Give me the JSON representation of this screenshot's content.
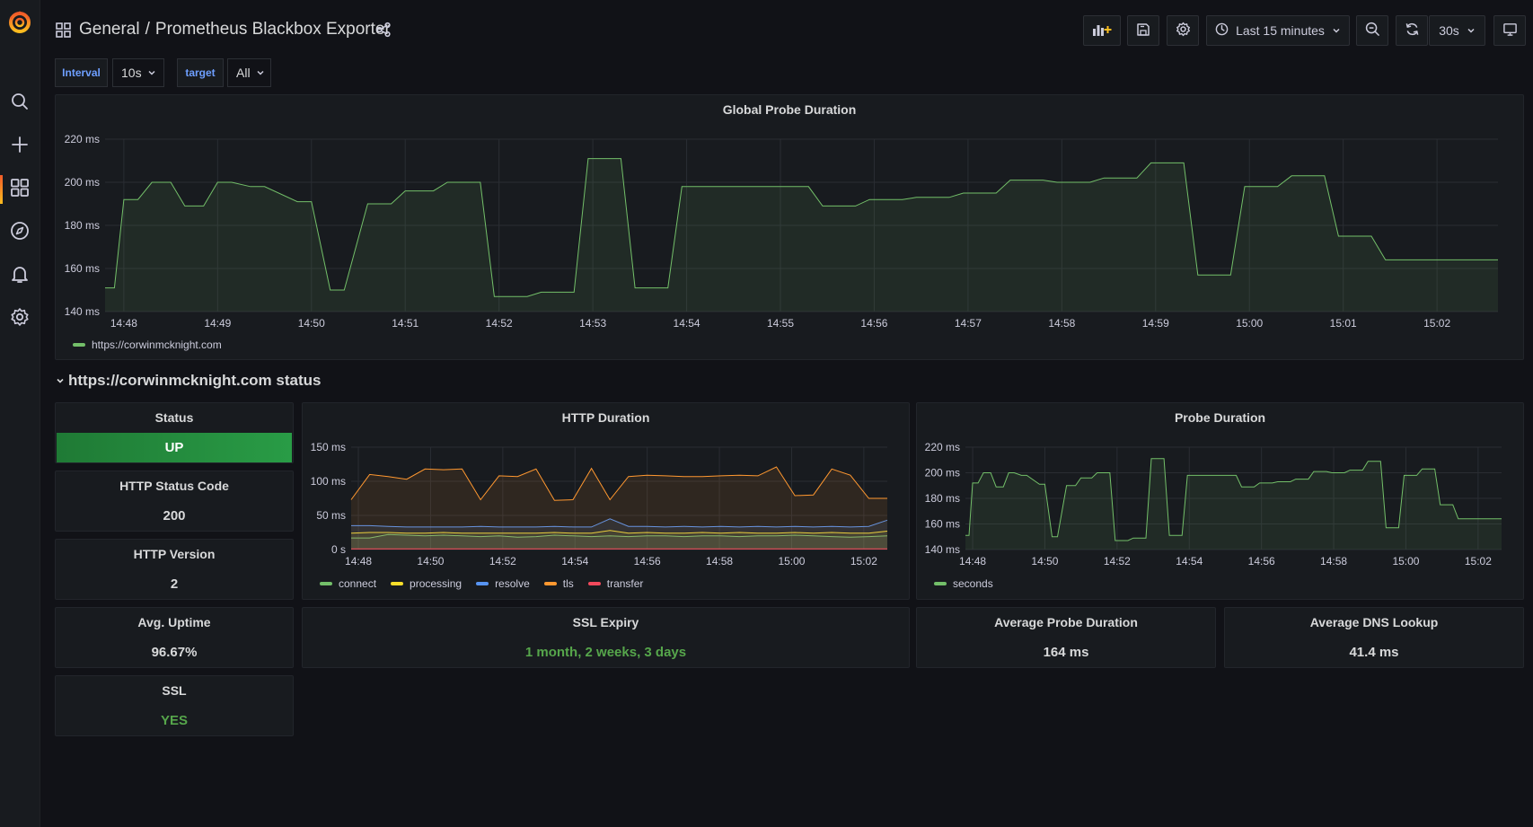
{
  "nav": {
    "icons": [
      "grafana-logo",
      "search-icon",
      "plus-icon",
      "dashboards-icon",
      "explore-icon",
      "alerting-icon",
      "settings-icon"
    ]
  },
  "header": {
    "folder": "General",
    "separator": "/",
    "title": "Prometheus Blackbox Exporter",
    "time_range": "Last 15 minutes",
    "refresh": "30s"
  },
  "variables": {
    "interval_label": "Interval",
    "interval_value": "10s",
    "target_label": "target",
    "target_value": "All"
  },
  "global_panel": {
    "title": "Global Probe Duration",
    "legend": "https://corwinmcknight.com"
  },
  "row": {
    "title": "https://corwinmcknight.com status"
  },
  "stats": {
    "status_title": "Status",
    "status_value": "UP",
    "http_code_title": "HTTP Status Code",
    "http_code_value": "200",
    "http_version_title": "HTTP Version",
    "http_version_value": "2",
    "uptime_title": "Avg. Uptime",
    "uptime_value": "96.67%",
    "ssl_title": "SSL",
    "ssl_value": "YES",
    "ssl_expiry_title": "SSL Expiry",
    "ssl_expiry_value": "1 month, 2 weeks, 3 days",
    "avg_probe_title": "Average Probe Duration",
    "avg_probe_value": "164 ms",
    "avg_dns_title": "Average DNS Lookup",
    "avg_dns_value": "41.4 ms"
  },
  "http_panel": {
    "title": "HTTP Duration"
  },
  "probe_panel": {
    "title": "Probe Duration",
    "legend": "seconds"
  },
  "colors": {
    "green_series": "#73bf69",
    "connect": "#73bf69",
    "processing": "#fade2a",
    "resolve": "#5794f2",
    "tls": "#ff9830",
    "transfer": "#f2495c",
    "status_up": "#299c46"
  },
  "chart_data": [
    {
      "id": "global",
      "type": "area",
      "title": "Global Probe Duration",
      "x_ticks": [
        "14:48",
        "14:49",
        "14:50",
        "14:51",
        "14:52",
        "14:53",
        "14:54",
        "14:55",
        "14:56",
        "14:57",
        "14:58",
        "14:59",
        "15:00",
        "15:01",
        "15:02"
      ],
      "y_ticks": [
        "140 ms",
        "160 ms",
        "180 ms",
        "200 ms",
        "220 ms"
      ],
      "ylim": [
        140,
        220
      ],
      "xlim": [
        47.8,
        62.65
      ],
      "series": [
        {
          "name": "https://corwinmcknight.com",
          "color": "#73bf69",
          "x": [
            47.8,
            47.9,
            48.0,
            48.15,
            48.3,
            48.5,
            48.65,
            48.85,
            49.0,
            49.15,
            49.35,
            49.5,
            49.85,
            50.0,
            50.2,
            50.35,
            50.6,
            50.85,
            51.0,
            51.3,
            51.45,
            51.8,
            51.95,
            52.3,
            52.45,
            52.8,
            52.95,
            53.3,
            53.45,
            53.8,
            53.95,
            54.3,
            54.45,
            54.8,
            54.95,
            55.3,
            55.45,
            55.8,
            55.95,
            56.3,
            56.45,
            56.8,
            56.95,
            57.3,
            57.45,
            57.8,
            57.95,
            58.3,
            58.45,
            58.8,
            58.95,
            59.3,
            59.45,
            59.8,
            59.95,
            60.3,
            60.45,
            60.8,
            60.95,
            61.3,
            61.45,
            61.8,
            61.95,
            62.3,
            62.45,
            62.65
          ],
          "y": [
            151,
            151,
            192,
            192,
            200,
            200,
            189,
            189,
            200,
            200,
            198,
            198,
            191,
            191,
            150,
            150,
            190,
            190,
            196,
            196,
            200,
            200,
            147,
            147,
            149,
            149,
            211,
            211,
            151,
            151,
            198,
            198,
            198,
            198,
            198,
            198,
            189,
            189,
            192,
            192,
            193,
            193,
            195,
            195,
            201,
            201,
            200,
            200,
            202,
            202,
            209,
            209,
            157,
            157,
            198,
            198,
            203,
            203,
            175,
            175,
            164,
            164,
            164,
            164,
            164,
            164
          ]
        }
      ]
    },
    {
      "id": "http",
      "type": "area",
      "title": "HTTP Duration",
      "x_ticks": [
        "14:48",
        "14:50",
        "14:52",
        "14:54",
        "14:56",
        "14:58",
        "15:00",
        "15:02"
      ],
      "y_ticks": [
        "0 s",
        "50 ms",
        "100 ms",
        "150 ms"
      ],
      "ylim": [
        0,
        150
      ],
      "xlim": [
        47.8,
        62.65
      ],
      "series": [
        {
          "name": "connect",
          "color": "#73bf69",
          "values": [
            17,
            17,
            22,
            21,
            20,
            21,
            20,
            19,
            20,
            18,
            19,
            21,
            20,
            19,
            20,
            19,
            20,
            20,
            19,
            20,
            20,
            19,
            20,
            20,
            21,
            20,
            19,
            18,
            19,
            20
          ]
        },
        {
          "name": "processing",
          "color": "#fade2a",
          "values": [
            24,
            25,
            25,
            24,
            24,
            25,
            24,
            24,
            24,
            24,
            24,
            25,
            24,
            24,
            28,
            24,
            25,
            24,
            24,
            25,
            24,
            25,
            24,
            24,
            25,
            24,
            25,
            24,
            24,
            27
          ]
        },
        {
          "name": "resolve",
          "color": "#5794f2",
          "values": [
            35,
            35,
            34,
            33,
            33,
            33,
            33,
            34,
            33,
            33,
            33,
            34,
            33,
            33,
            45,
            34,
            34,
            33,
            34,
            33,
            34,
            33,
            34,
            33,
            34,
            33,
            34,
            33,
            34,
            43
          ]
        },
        {
          "name": "tls",
          "color": "#ff9830",
          "values": [
            73,
            110,
            107,
            103,
            118,
            117,
            118,
            73,
            108,
            107,
            118,
            72,
            73,
            119,
            73,
            107,
            109,
            108,
            107,
            107,
            108,
            109,
            108,
            121,
            79,
            80,
            118,
            109,
            75,
            75
          ]
        },
        {
          "name": "transfer",
          "color": "#f2495c",
          "values": [
            1,
            1,
            1,
            1,
            1,
            1,
            1,
            1,
            1,
            1,
            1,
            1,
            1,
            1,
            1,
            1,
            1,
            1,
            1,
            1,
            1,
            1,
            1,
            1,
            1,
            1,
            1,
            1,
            1,
            1
          ]
        }
      ]
    },
    {
      "id": "probe",
      "type": "area",
      "title": "Probe Duration",
      "x_ticks": [
        "14:48",
        "14:50",
        "14:52",
        "14:54",
        "14:56",
        "14:58",
        "15:00",
        "15:02"
      ],
      "y_ticks": [
        "140 ms",
        "160 ms",
        "180 ms",
        "200 ms",
        "220 ms"
      ],
      "ylim": [
        140,
        220
      ],
      "xlim": [
        47.8,
        62.65
      ],
      "series": [
        {
          "name": "seconds",
          "color": "#73bf69",
          "x": [
            47.8,
            47.9,
            48.0,
            48.15,
            48.3,
            48.5,
            48.65,
            48.85,
            49.0,
            49.15,
            49.35,
            49.5,
            49.85,
            50.0,
            50.2,
            50.35,
            50.6,
            50.85,
            51.0,
            51.3,
            51.45,
            51.8,
            51.95,
            52.3,
            52.45,
            52.8,
            52.95,
            53.3,
            53.45,
            53.8,
            53.95,
            54.3,
            54.45,
            54.8,
            54.95,
            55.3,
            55.45,
            55.8,
            55.95,
            56.3,
            56.45,
            56.8,
            56.95,
            57.3,
            57.45,
            57.8,
            57.95,
            58.3,
            58.45,
            58.8,
            58.95,
            59.3,
            59.45,
            59.8,
            59.95,
            60.3,
            60.45,
            60.8,
            60.95,
            61.3,
            61.45,
            61.8,
            61.95,
            62.3,
            62.45,
            62.65
          ],
          "y": [
            151,
            151,
            192,
            192,
            200,
            200,
            189,
            189,
            200,
            200,
            198,
            198,
            191,
            191,
            150,
            150,
            190,
            190,
            196,
            196,
            200,
            200,
            147,
            147,
            149,
            149,
            211,
            211,
            151,
            151,
            198,
            198,
            198,
            198,
            198,
            198,
            189,
            189,
            192,
            192,
            193,
            193,
            195,
            195,
            201,
            201,
            200,
            200,
            202,
            202,
            209,
            209,
            157,
            157,
            198,
            198,
            203,
            203,
            175,
            175,
            164,
            164,
            164,
            164,
            164,
            164
          ]
        }
      ]
    }
  ]
}
